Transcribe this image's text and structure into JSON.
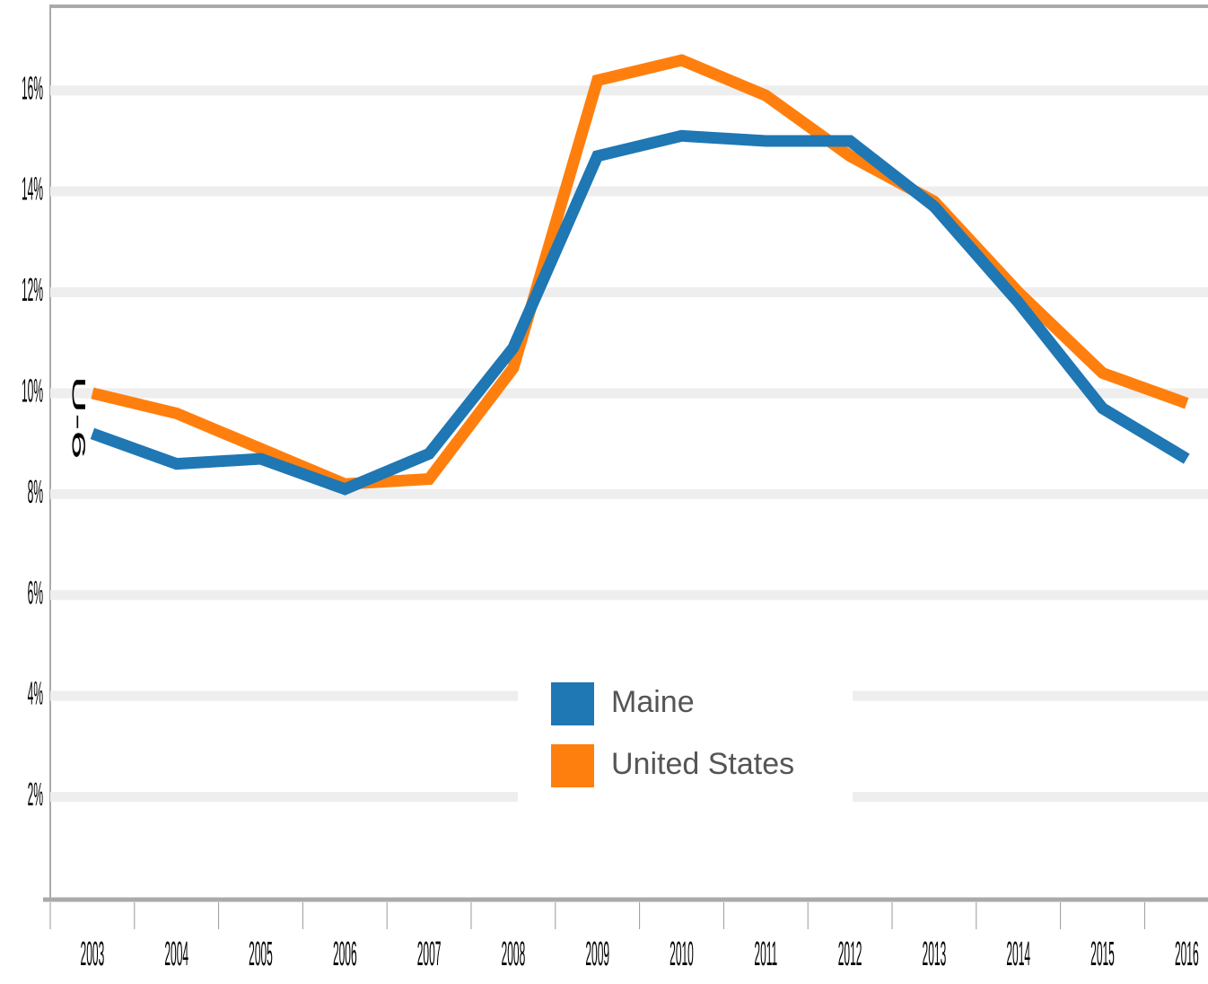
{
  "chart_data": {
    "type": "line",
    "y_label": "U-6",
    "categories": [
      "2003",
      "2004",
      "2005",
      "2006",
      "2007",
      "2008",
      "2009",
      "2010",
      "2011",
      "2012",
      "2013",
      "2014",
      "2015",
      "2016"
    ],
    "series": [
      {
        "name": "Maine",
        "color": "#1f77b4",
        "values": [
          9.2,
          8.6,
          8.7,
          8.1,
          8.8,
          10.9,
          14.7,
          15.1,
          15.0,
          15.0,
          13.7,
          11.8,
          9.7,
          8.7
        ]
      },
      {
        "name": "United States",
        "color": "#ff7f0e",
        "values": [
          10.0,
          9.6,
          8.9,
          8.2,
          8.3,
          10.5,
          16.2,
          16.6,
          15.9,
          14.7,
          13.8,
          12.0,
          10.4,
          9.8
        ]
      }
    ],
    "ylim": [
      0,
      17.65
    ],
    "yticks": [
      {
        "value": 2,
        "label": "2%"
      },
      {
        "value": 4,
        "label": "4%"
      },
      {
        "value": 6,
        "label": "6%"
      },
      {
        "value": 8,
        "label": "8%"
      },
      {
        "value": 10,
        "label": "10%"
      },
      {
        "value": 12,
        "label": "12%"
      },
      {
        "value": 14,
        "label": "14%"
      },
      {
        "value": 16,
        "label": "16%"
      }
    ],
    "grid": true,
    "legend_position": "bottom-center"
  }
}
